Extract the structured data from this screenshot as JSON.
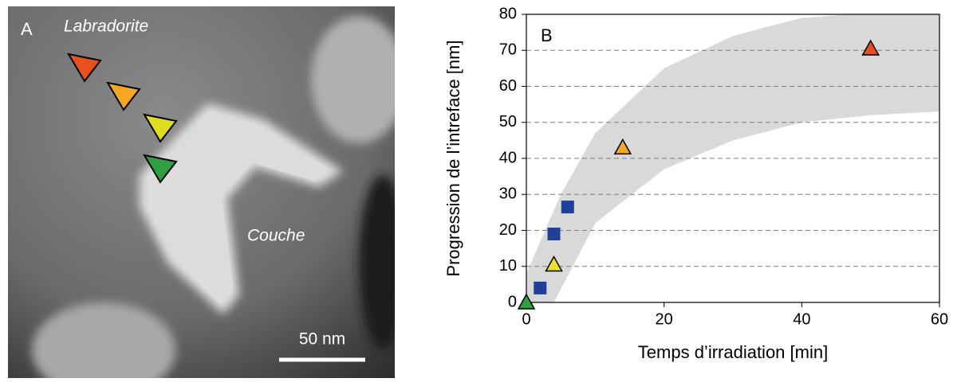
{
  "image_panel": {
    "label": "A",
    "annotations": [
      "Labradorite",
      "Couche"
    ],
    "scale_bar": "50 nm"
  },
  "chart_data": {
    "type": "scatter",
    "panel_label": "B",
    "xlabel": "Temps d’irradiation [min]",
    "ylabel": "Progression de l’intreface [nm]",
    "xlim": [
      0,
      60
    ],
    "ylim": [
      0,
      80
    ],
    "xticks": [
      0,
      20,
      40,
      60
    ],
    "yticks": [
      0,
      10,
      20,
      30,
      40,
      50,
      60,
      70,
      80
    ],
    "grid": true,
    "band": {
      "color": "#d9d9d9",
      "x": [
        0,
        5,
        10,
        20,
        30,
        40,
        47,
        60
      ],
      "upper": [
        8,
        30,
        47,
        65,
        74,
        79,
        80,
        80
      ],
      "lower_x": [
        0,
        4,
        10,
        20,
        30,
        40,
        50,
        60
      ],
      "lower": [
        0,
        0,
        22,
        37,
        45,
        50,
        52,
        53
      ]
    },
    "series": [
      {
        "marker": "square",
        "color": "#1f3f9a",
        "x": [
          2,
          4,
          6
        ],
        "values": [
          4,
          19,
          26.5
        ]
      },
      {
        "marker": "triangle",
        "colors": [
          "#2ea043",
          "#e8e02a",
          "#f5a623",
          "#e8501e"
        ],
        "x": [
          0,
          4,
          14,
          50
        ],
        "values": [
          0,
          10.5,
          43,
          70.5
        ]
      }
    ]
  }
}
